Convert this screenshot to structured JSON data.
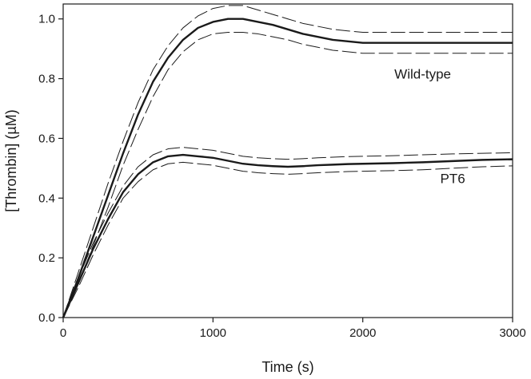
{
  "chart_data": {
    "type": "line",
    "title": "",
    "xlabel": "Time (s)",
    "ylabel": "[Thrombin] (µM)",
    "xlim": [
      0,
      3000
    ],
    "ylim": [
      0,
      1.05
    ],
    "x_ticks": [
      0,
      1000,
      2000,
      3000
    ],
    "y_ticks": [
      0.0,
      0.2,
      0.4,
      0.6,
      0.8,
      1.0
    ],
    "x_tick_labels": [
      "0",
      "1000",
      "2000",
      "3000"
    ],
    "y_tick_labels": [
      "0.0",
      "0.2",
      "0.4",
      "0.6",
      "0.8",
      "1.0"
    ],
    "grid": false,
    "legend": "none",
    "series": [
      {
        "name": "Wild-type",
        "label_position": [
          2400,
          0.8
        ],
        "x": [
          0,
          100,
          200,
          300,
          400,
          500,
          600,
          700,
          800,
          900,
          1000,
          1100,
          1200,
          1300,
          1400,
          1500,
          1600,
          1700,
          1800,
          1900,
          2000,
          2200,
          2400,
          2600,
          2800,
          3000
        ],
        "mean": [
          0,
          0.13,
          0.27,
          0.41,
          0.55,
          0.68,
          0.79,
          0.87,
          0.93,
          0.97,
          0.99,
          1.0,
          1.0,
          0.99,
          0.98,
          0.965,
          0.95,
          0.94,
          0.93,
          0.925,
          0.92,
          0.92,
          0.92,
          0.92,
          0.92,
          0.92
        ],
        "upper": [
          0,
          0.15,
          0.3,
          0.45,
          0.59,
          0.72,
          0.83,
          0.91,
          0.97,
          1.01,
          1.035,
          1.045,
          1.045,
          1.03,
          1.015,
          1.0,
          0.985,
          0.975,
          0.965,
          0.96,
          0.955,
          0.955,
          0.955,
          0.955,
          0.955,
          0.955
        ],
        "lower": [
          0,
          0.11,
          0.24,
          0.37,
          0.51,
          0.63,
          0.74,
          0.83,
          0.89,
          0.93,
          0.95,
          0.955,
          0.955,
          0.95,
          0.94,
          0.93,
          0.915,
          0.905,
          0.895,
          0.89,
          0.885,
          0.885,
          0.885,
          0.885,
          0.885,
          0.885
        ]
      },
      {
        "name": "PT6",
        "label_position": [
          2600,
          0.45
        ],
        "x": [
          0,
          100,
          200,
          300,
          400,
          500,
          600,
          700,
          800,
          900,
          1000,
          1100,
          1200,
          1300,
          1400,
          1500,
          1600,
          1700,
          1800,
          1900,
          2000,
          2200,
          2400,
          2600,
          2800,
          3000
        ],
        "mean": [
          0,
          0.115,
          0.23,
          0.33,
          0.42,
          0.48,
          0.52,
          0.54,
          0.545,
          0.54,
          0.535,
          0.525,
          0.515,
          0.51,
          0.507,
          0.505,
          0.507,
          0.51,
          0.512,
          0.514,
          0.515,
          0.517,
          0.52,
          0.524,
          0.528,
          0.53
        ],
        "upper": [
          0,
          0.13,
          0.25,
          0.35,
          0.44,
          0.505,
          0.545,
          0.565,
          0.57,
          0.565,
          0.56,
          0.55,
          0.54,
          0.535,
          0.532,
          0.53,
          0.532,
          0.535,
          0.537,
          0.539,
          0.54,
          0.542,
          0.545,
          0.548,
          0.55,
          0.552
        ],
        "lower": [
          0,
          0.1,
          0.21,
          0.31,
          0.4,
          0.455,
          0.495,
          0.515,
          0.52,
          0.515,
          0.51,
          0.5,
          0.49,
          0.485,
          0.482,
          0.48,
          0.482,
          0.485,
          0.487,
          0.489,
          0.49,
          0.492,
          0.495,
          0.5,
          0.505,
          0.508
        ]
      }
    ]
  }
}
